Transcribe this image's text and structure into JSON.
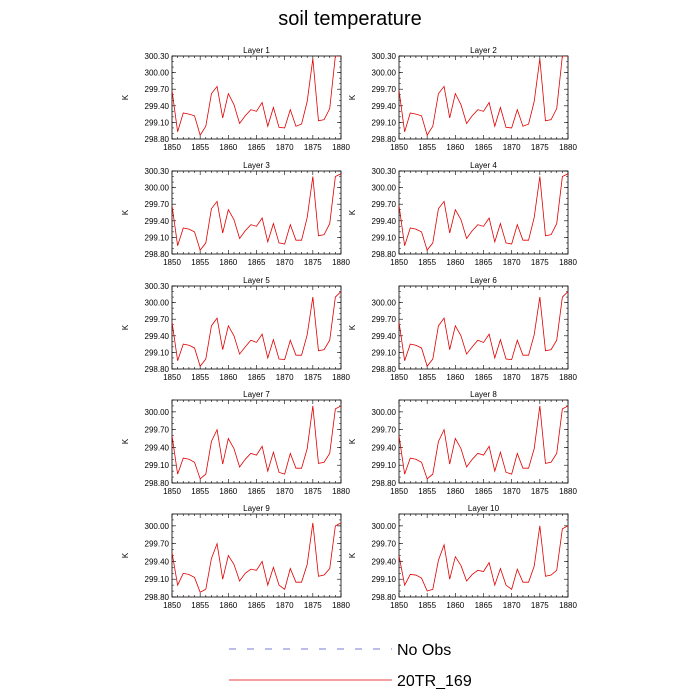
{
  "chart_data": {
    "type": "line",
    "title": "soil temperature",
    "legend": [
      {
        "name": "No Obs",
        "color": "#5050c8",
        "dash": true
      },
      {
        "name": "20TR_169",
        "color": "#e00000",
        "dash": false
      }
    ],
    "x": [
      1850,
      1851,
      1852,
      1853,
      1854,
      1855,
      1856,
      1857,
      1858,
      1859,
      1860,
      1861,
      1862,
      1863,
      1864,
      1865,
      1866,
      1867,
      1868,
      1869,
      1870,
      1871,
      1872,
      1873,
      1874,
      1875,
      1876,
      1877,
      1878,
      1879,
      1880
    ],
    "xticks": [
      1850,
      1855,
      1860,
      1865,
      1870,
      1875,
      1880
    ],
    "xlim": [
      1850,
      1880
    ],
    "ylabel": "K",
    "panels": [
      {
        "title": "Layer 1",
        "ylim": [
          298.8,
          300.3
        ],
        "yticks": [
          "298.80",
          "299.10",
          "299.40",
          "299.70",
          "300.00",
          "300.30"
        ],
        "values": [
          299.68,
          298.93,
          299.27,
          299.25,
          299.22,
          298.87,
          299.03,
          299.62,
          299.75,
          299.18,
          299.62,
          299.42,
          299.08,
          299.22,
          299.33,
          299.3,
          299.46,
          299.03,
          299.37,
          299.01,
          299.0,
          299.33,
          299.03,
          299.07,
          299.48,
          300.25,
          299.13,
          299.15,
          299.35,
          300.3,
          300.3
        ]
      },
      {
        "title": "Layer 2",
        "ylim": [
          298.8,
          300.3
        ],
        "yticks": [
          "298.80",
          "299.10",
          "299.40",
          "299.70",
          "300.00",
          "300.30"
        ],
        "values": [
          299.68,
          298.93,
          299.27,
          299.25,
          299.22,
          298.87,
          299.03,
          299.62,
          299.75,
          299.18,
          299.62,
          299.42,
          299.08,
          299.22,
          299.33,
          299.3,
          299.46,
          299.03,
          299.37,
          299.01,
          299.0,
          299.33,
          299.03,
          299.07,
          299.48,
          300.25,
          299.13,
          299.15,
          299.35,
          300.3,
          300.3
        ]
      },
      {
        "title": "Layer 3",
        "ylim": [
          298.8,
          300.3
        ],
        "yticks": [
          "298.80",
          "299.10",
          "299.40",
          "299.70",
          "300.00",
          "300.30"
        ],
        "values": [
          299.68,
          298.95,
          299.27,
          299.25,
          299.2,
          298.87,
          299.0,
          299.62,
          299.75,
          299.18,
          299.6,
          299.42,
          299.08,
          299.22,
          299.33,
          299.3,
          299.45,
          299.02,
          299.35,
          299.0,
          298.98,
          299.33,
          299.05,
          299.05,
          299.46,
          300.2,
          299.13,
          299.15,
          299.35,
          300.2,
          300.25
        ]
      },
      {
        "title": "Layer 4",
        "ylim": [
          298.8,
          300.3
        ],
        "yticks": [
          "298.80",
          "299.10",
          "299.40",
          "299.70",
          "300.00",
          "300.30"
        ],
        "values": [
          299.68,
          298.95,
          299.27,
          299.25,
          299.2,
          298.87,
          299.0,
          299.62,
          299.75,
          299.18,
          299.6,
          299.42,
          299.08,
          299.22,
          299.33,
          299.3,
          299.45,
          299.02,
          299.35,
          299.0,
          298.98,
          299.33,
          299.05,
          299.05,
          299.46,
          300.2,
          299.13,
          299.15,
          299.35,
          300.2,
          300.25
        ]
      },
      {
        "title": "Layer 5",
        "ylim": [
          298.8,
          300.3
        ],
        "yticks": [
          "298.80",
          "299.10",
          "299.40",
          "299.70",
          "300.00",
          "300.30"
        ],
        "values": [
          299.65,
          298.95,
          299.25,
          299.23,
          299.18,
          298.85,
          298.98,
          299.58,
          299.72,
          299.15,
          299.58,
          299.4,
          299.07,
          299.2,
          299.32,
          299.28,
          299.43,
          299.0,
          299.33,
          298.98,
          298.97,
          299.32,
          299.05,
          299.05,
          299.42,
          300.1,
          299.13,
          299.15,
          299.32,
          300.1,
          300.2
        ]
      },
      {
        "title": "Layer 6",
        "ylim": [
          298.8,
          300.3
        ],
        "yticks": [
          "298.80",
          "299.10",
          "299.40",
          "299.70",
          "300.00"
        ],
        "values": [
          299.65,
          298.95,
          299.25,
          299.23,
          299.18,
          298.85,
          298.98,
          299.58,
          299.72,
          299.15,
          299.58,
          299.4,
          299.07,
          299.2,
          299.32,
          299.28,
          299.43,
          299.0,
          299.33,
          298.98,
          298.97,
          299.32,
          299.05,
          299.05,
          299.42,
          300.1,
          299.13,
          299.15,
          299.32,
          300.1,
          300.2
        ]
      },
      {
        "title": "Layer 7",
        "ylim": [
          298.8,
          300.2
        ],
        "yticks": [
          "298.80",
          "299.10",
          "299.40",
          "299.70",
          "300.00"
        ],
        "values": [
          299.6,
          298.95,
          299.22,
          299.2,
          299.15,
          298.87,
          298.95,
          299.5,
          299.7,
          299.12,
          299.55,
          299.38,
          299.07,
          299.2,
          299.3,
          299.27,
          299.42,
          299.0,
          299.32,
          298.98,
          298.95,
          299.3,
          299.05,
          299.05,
          299.38,
          300.1,
          299.13,
          299.15,
          299.3,
          300.05,
          300.1
        ]
      },
      {
        "title": "Layer 8",
        "ylim": [
          298.8,
          300.2
        ],
        "yticks": [
          "298.80",
          "299.10",
          "299.40",
          "299.70",
          "300.00"
        ],
        "values": [
          299.6,
          298.95,
          299.22,
          299.2,
          299.15,
          298.87,
          298.95,
          299.5,
          299.7,
          299.12,
          299.55,
          299.38,
          299.07,
          299.2,
          299.3,
          299.27,
          299.42,
          299.0,
          299.32,
          298.98,
          298.95,
          299.3,
          299.05,
          299.05,
          299.38,
          300.1,
          299.13,
          299.15,
          299.3,
          300.05,
          300.1
        ]
      },
      {
        "title": "Layer 9",
        "ylim": [
          298.8,
          300.2
        ],
        "yticks": [
          "298.80",
          "299.10",
          "299.40",
          "299.70",
          "300.00"
        ],
        "values": [
          299.55,
          299.0,
          299.2,
          299.18,
          299.13,
          298.88,
          298.93,
          299.45,
          299.7,
          299.1,
          299.5,
          299.35,
          299.07,
          299.2,
          299.27,
          299.25,
          299.4,
          299.0,
          299.3,
          299.0,
          298.93,
          299.28,
          299.05,
          299.05,
          299.35,
          300.05,
          299.15,
          299.17,
          299.28,
          300.0,
          300.05
        ]
      },
      {
        "title": "Layer 10",
        "ylim": [
          298.8,
          300.2
        ],
        "yticks": [
          "298.80",
          "299.10",
          "299.40",
          "299.70",
          "300.00"
        ],
        "values": [
          299.5,
          299.0,
          299.18,
          299.17,
          299.12,
          298.9,
          298.93,
          299.42,
          299.68,
          299.1,
          299.48,
          299.33,
          299.07,
          299.18,
          299.25,
          299.23,
          299.38,
          299.0,
          299.28,
          299.0,
          298.93,
          299.27,
          299.05,
          299.05,
          299.32,
          300.0,
          299.15,
          299.17,
          299.25,
          299.95,
          300.0
        ]
      }
    ]
  }
}
